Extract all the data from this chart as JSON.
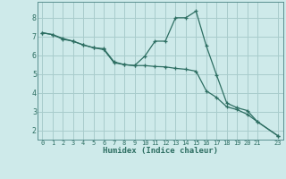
{
  "xlabel": "Humidex (Indice chaleur)",
  "background_color": "#ceeaea",
  "grid_color": "#a8cccc",
  "line_color": "#2d6e62",
  "xlim": [
    -0.5,
    23.5
  ],
  "ylim": [
    1.5,
    8.85
  ],
  "xticks": [
    0,
    1,
    2,
    3,
    4,
    5,
    6,
    7,
    8,
    9,
    10,
    11,
    12,
    13,
    14,
    15,
    16,
    17,
    18,
    19,
    20,
    21,
    23
  ],
  "yticks": [
    2,
    3,
    4,
    5,
    6,
    7,
    8
  ],
  "line1_x": [
    0,
    1,
    2,
    3,
    4,
    5,
    6,
    7,
    8,
    9,
    10,
    11,
    12,
    13,
    14,
    15,
    16,
    17,
    18,
    19,
    20,
    21,
    23
  ],
  "line1_y": [
    7.2,
    7.1,
    6.9,
    6.75,
    6.55,
    6.4,
    6.35,
    5.65,
    5.5,
    5.45,
    5.45,
    5.4,
    5.38,
    5.3,
    5.25,
    5.15,
    4.1,
    3.75,
    3.25,
    3.1,
    2.85,
    2.45,
    1.7
  ],
  "line2_x": [
    0,
    1,
    2,
    3,
    4,
    5,
    6,
    7,
    8,
    9,
    10,
    11,
    12,
    13,
    14,
    15,
    16,
    17,
    18,
    19,
    20,
    21,
    23
  ],
  "line2_y": [
    7.2,
    7.1,
    6.85,
    6.75,
    6.55,
    6.4,
    6.3,
    5.6,
    5.5,
    5.45,
    5.95,
    6.75,
    6.75,
    8.0,
    8.0,
    8.35,
    6.5,
    4.95,
    3.45,
    3.2,
    3.05,
    2.45,
    1.7
  ]
}
